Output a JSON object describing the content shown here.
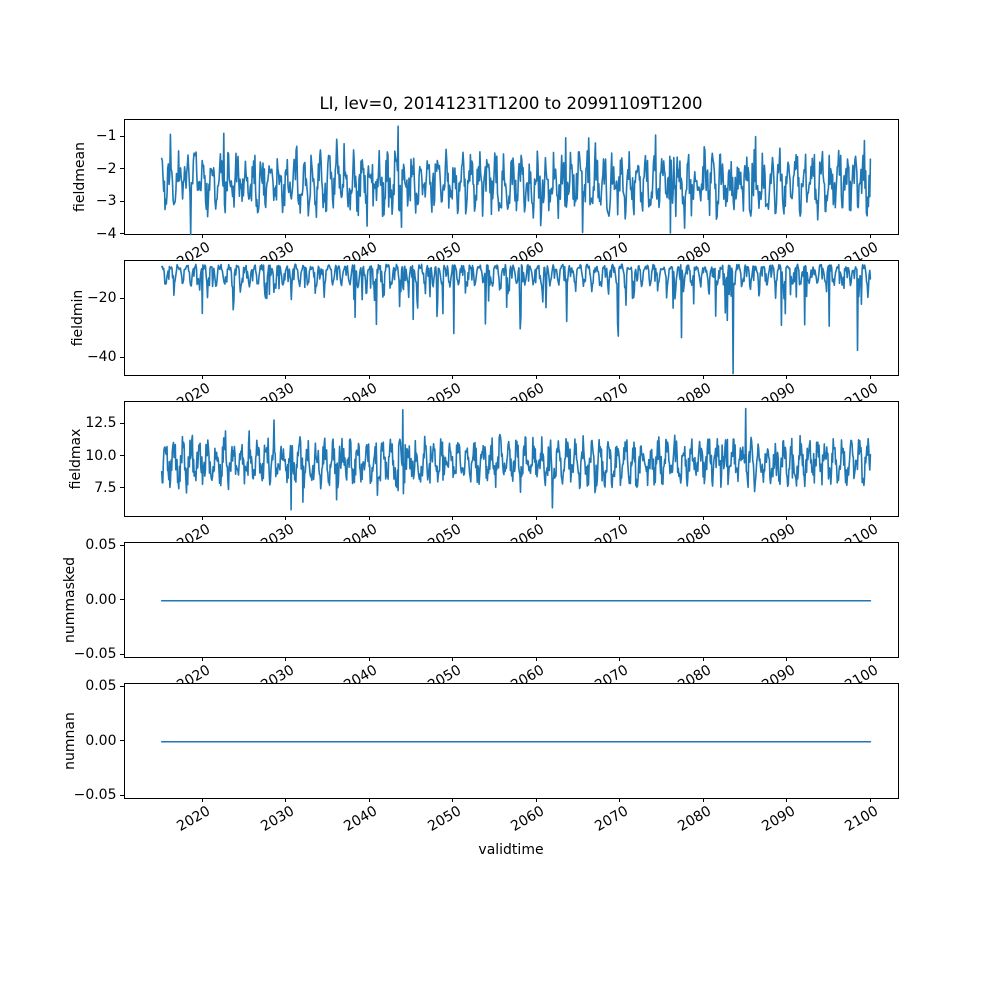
{
  "figure": {
    "background": "#ffffff",
    "frame_color": "#000000"
  },
  "chart_data": {
    "type": "line",
    "title": "LI, lev=0, 20141231T1200 to 20991109T1200",
    "xlabel": "validtime",
    "line_color": "#1f77b4",
    "grid": false,
    "legend": "none",
    "x_axis": {
      "min": 2010.6,
      "max": 2103.4,
      "ticks": [
        2020,
        2030,
        2040,
        2050,
        2060,
        2070,
        2080,
        2090,
        2100
      ],
      "tick_labels": [
        "2020",
        "2030",
        "2040",
        "2050",
        "2060",
        "2070",
        "2080",
        "2090",
        "2100"
      ],
      "tick_rotation_deg": 30,
      "data_start": 2014.99,
      "data_end": 2099.86
    },
    "subplots": [
      {
        "ylabel": "fieldmean",
        "ylim": [
          -4.03,
          -0.47
        ],
        "ytick_values": [
          -1,
          -2,
          -3,
          -4
        ],
        "ytick_labels": [
          "−1",
          "−2",
          "−3",
          "−4"
        ],
        "observed_range": [
          -4.0,
          -0.63
        ],
        "series": {
          "kind": "synthetic-noisy",
          "n": 1050,
          "start": 2014.99,
          "end": 2099.86,
          "seed": 7,
          "mean": -2.42,
          "seasonal_amp": 0.52,
          "cycles_per_year": 1,
          "phase": 0.25,
          "noise": 0.58,
          "extra_noise": {
            "prob": 0.1,
            "amp": 0.85,
            "sign": 0
          },
          "clip": [
            -4.0,
            -0.62
          ],
          "events": [
            {
              "x": 2022.4,
              "y": -0.88
            },
            {
              "x": 2043.3,
              "y": -0.66
            },
            {
              "x": 2063.4,
              "y": -1.02
            },
            {
              "x": 2075.9,
              "y": -3.95
            }
          ]
        }
      },
      {
        "ylabel": "fieldmin",
        "ylim": [
          -46.2,
          -7.0
        ],
        "ytick_values": [
          -20,
          -40
        ],
        "ytick_labels": [
          "−20",
          "−40"
        ],
        "observed_range": [
          -45.2,
          -8.0
        ],
        "series": {
          "kind": "synthetic-noisy",
          "n": 1100,
          "start": 2014.99,
          "end": 2099.86,
          "seed": 11,
          "mean": -9.0,
          "shape": "dip",
          "seasonal_amp": 3.0,
          "cycles_per_year": 1,
          "phase": 0,
          "noise": 0.9,
          "extra_noise": {
            "prob": 0.25,
            "amp": 5,
            "sign": -1
          },
          "spike": {
            "prob": 0.05,
            "min": 5,
            "max": 17,
            "growth": 0.8
          },
          "clip": [
            -45.5,
            -8.0
          ],
          "events": [
            {
              "x": 2040.7,
              "y": -28.5
            },
            {
              "x": 2048.0,
              "y": -25.8
            },
            {
              "x": 2050.0,
              "y": -31.6
            },
            {
              "x": 2057.9,
              "y": -30.0
            },
            {
              "x": 2063.5,
              "y": -27.5
            },
            {
              "x": 2069.7,
              "y": -32.5
            },
            {
              "x": 2077.2,
              "y": -33.0
            },
            {
              "x": 2083.4,
              "y": -45.2
            },
            {
              "x": 2089.2,
              "y": -28.8
            },
            {
              "x": 2098.3,
              "y": -37.3
            }
          ]
        }
      },
      {
        "ylabel": "fieldmax",
        "ylim": [
          5.3,
          14.2
        ],
        "ytick_values": [
          12.5,
          10.0,
          7.5
        ],
        "ytick_labels": [
          "12.5",
          "10.0",
          "7.5"
        ],
        "observed_range": [
          5.9,
          13.7
        ],
        "series": {
          "kind": "synthetic-noisy",
          "n": 1200,
          "start": 2014.99,
          "end": 2099.86,
          "seed": 5,
          "mean": 9.55,
          "seasonal_amp": 1.1,
          "cycles_per_year": 1,
          "phase": 0.75,
          "noise": 1.0,
          "extra_noise": {
            "prob": 0.12,
            "amp": 1.6,
            "sign": 0
          },
          "clip": [
            5.9,
            13.7
          ],
          "events": [
            {
              "x": 2030.5,
              "y": 5.9
            },
            {
              "x": 2043.9,
              "y": 13.6
            },
            {
              "x": 2061.8,
              "y": 6.05
            },
            {
              "x": 2084.9,
              "y": 13.7
            }
          ]
        }
      },
      {
        "ylabel": "nummasked",
        "ylim": [
          -0.053,
          0.053
        ],
        "ytick_values": [
          0.05,
          0.0,
          -0.05
        ],
        "ytick_labels": [
          "0.05",
          "0.00",
          "−0.05"
        ],
        "observed_range": [
          0,
          0
        ],
        "series": {
          "kind": "explicit",
          "x": [
            2014.99,
            2099.86
          ],
          "values": [
            0,
            0
          ]
        }
      },
      {
        "ylabel": "numnan",
        "ylim": [
          -0.053,
          0.053
        ],
        "ytick_values": [
          0.05,
          0.0,
          -0.05
        ],
        "ytick_labels": [
          "0.05",
          "0.00",
          "−0.05"
        ],
        "observed_range": [
          0,
          0
        ],
        "series": {
          "kind": "explicit",
          "x": [
            2014.99,
            2099.86
          ],
          "values": [
            0,
            0
          ]
        }
      }
    ]
  }
}
